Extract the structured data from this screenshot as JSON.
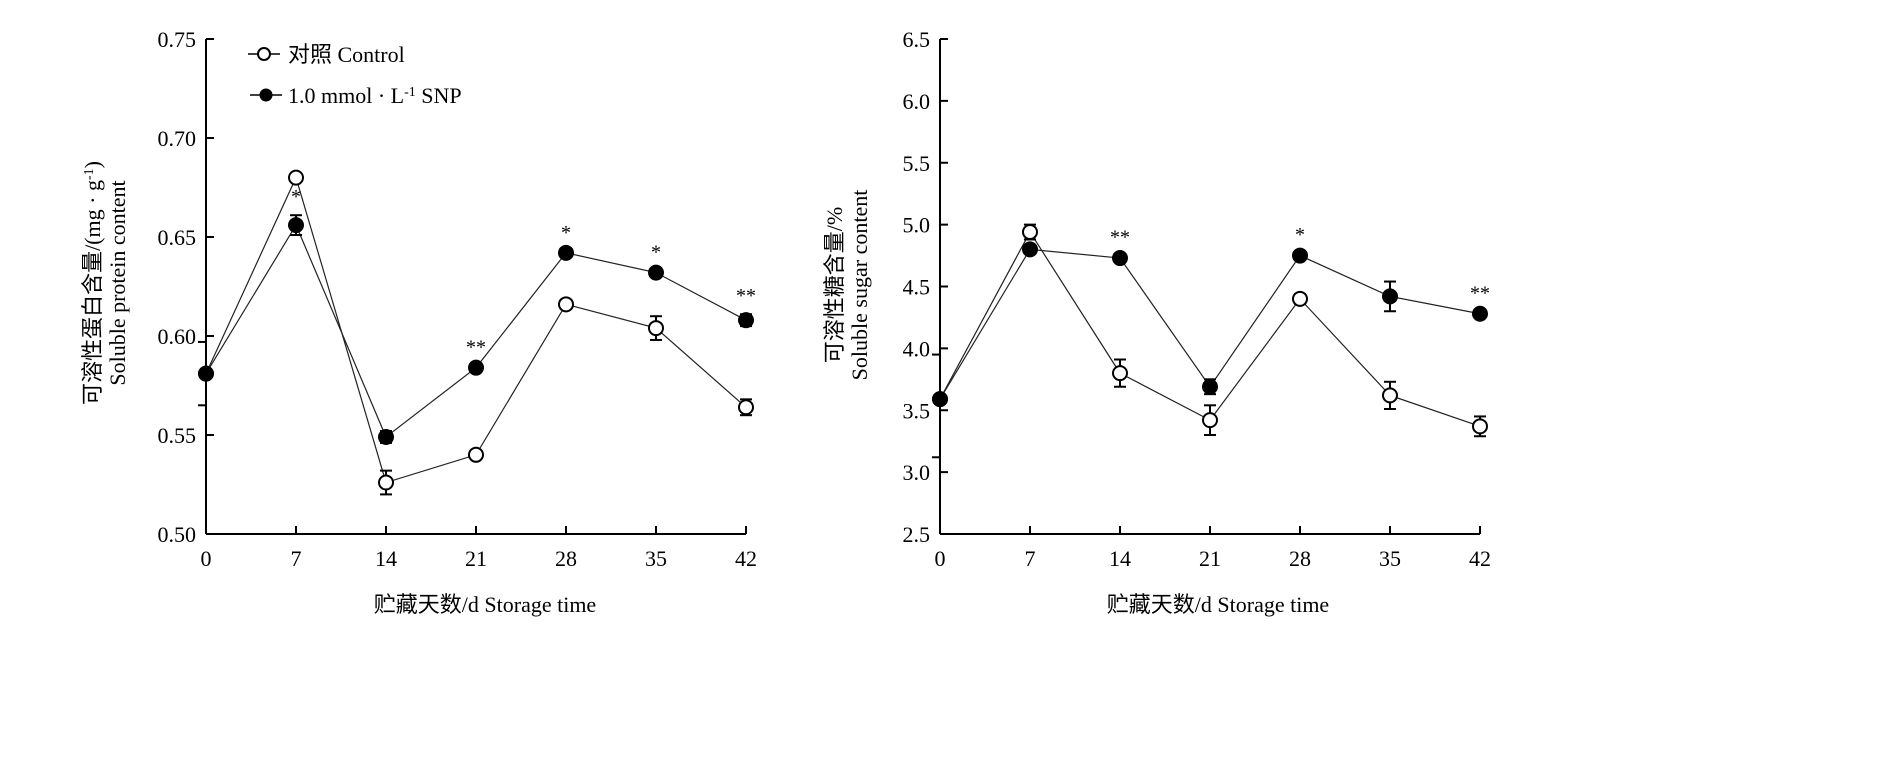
{
  "chart_data": [
    {
      "type": "line",
      "title": "",
      "xlabel": "贮藏天数/d Storage time",
      "ylabel_line1": "可溶性蛋白含量/(mg · g",
      "ylabel_sup": "-1",
      "ylabel_line1_end": ")",
      "ylabel_line2": "Soluble protein content",
      "x": [
        0,
        7,
        14,
        21,
        28,
        35,
        42
      ],
      "x_ticks": [
        "0",
        "7",
        "14",
        "21",
        "28",
        "35",
        "42"
      ],
      "xlim": [
        0,
        42
      ],
      "ylim": [
        0.5,
        0.75
      ],
      "y_ticks": [
        "0.50",
        "0.55",
        "0.60",
        "0.65",
        "0.70",
        "0.75"
      ],
      "grid": false,
      "legend_position": "top-left",
      "series": [
        {
          "name": "对照  Control",
          "marker": "open-circle",
          "values": [
            0.581,
            0.68,
            0.526,
            0.54,
            0.616,
            0.604,
            0.564
          ],
          "errors": [
            0.001,
            0.001,
            0.006,
            0.002,
            0.002,
            0.006,
            0.004
          ]
        },
        {
          "name": "1.0 mmol · L",
          "name_sup": "-1",
          "name_end": " SNP",
          "marker": "filled-circle",
          "values": [
            0.581,
            0.656,
            0.549,
            0.584,
            0.642,
            0.632,
            0.608
          ],
          "errors": [
            0.001,
            0.005,
            0.003,
            0.001,
            0.001,
            0.001,
            0.003
          ]
        }
      ],
      "significance": [
        {
          "x": 7,
          "label": "*"
        },
        {
          "x": 21,
          "label": "**"
        },
        {
          "x": 28,
          "label": "*"
        },
        {
          "x": 35,
          "label": "*"
        },
        {
          "x": 42,
          "label": "**"
        }
      ]
    },
    {
      "type": "line",
      "title": "",
      "xlabel": "贮藏天数/d Storage time",
      "ylabel_line1": "可溶性糖含量/%",
      "ylabel_line2": "Soluble sugar content",
      "x": [
        0,
        7,
        14,
        21,
        28,
        35,
        42
      ],
      "x_ticks": [
        "0",
        "7",
        "14",
        "21",
        "28",
        "35",
        "42"
      ],
      "xlim": [
        0,
        42
      ],
      "ylim": [
        2.5,
        6.5
      ],
      "y_ticks": [
        "2.5",
        "3.0",
        "3.5",
        "4.0",
        "4.5",
        "5.0",
        "5.5",
        "6.0",
        "6.5"
      ],
      "grid": false,
      "legend_position": "none",
      "series": [
        {
          "name": "对照  Control",
          "marker": "open-circle",
          "values": [
            3.59,
            4.94,
            3.8,
            3.42,
            4.4,
            3.62,
            3.37
          ],
          "errors": [
            0.02,
            0.06,
            0.11,
            0.12,
            0.04,
            0.11,
            0.08
          ]
        },
        {
          "name": "1.0 mmol · L-1 SNP",
          "marker": "filled-circle",
          "values": [
            3.59,
            4.8,
            4.73,
            3.69,
            4.75,
            4.42,
            4.28
          ],
          "errors": [
            0.02,
            0.02,
            0.02,
            0.06,
            0.02,
            0.12,
            0.02
          ]
        }
      ],
      "significance": [
        {
          "x": 14,
          "label": "**"
        },
        {
          "x": 28,
          "label": "*"
        },
        {
          "x": 42,
          "label": "**"
        }
      ]
    }
  ]
}
